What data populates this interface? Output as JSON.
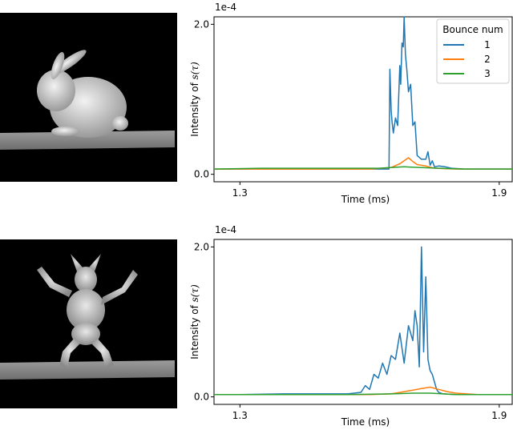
{
  "figure": {
    "colors": {
      "series1": "#1f77b4",
      "series2": "#ff7f0e",
      "series3": "#2ca02c",
      "render_bg": "#000000",
      "floor": "#8a8a8a",
      "model": "#d9d9d9"
    },
    "renders": [
      {
        "name": "bunny",
        "icon": "bunny-render"
      },
      {
        "name": "armadillo",
        "icon": "armadillo-render"
      }
    ]
  },
  "chart_data": [
    {
      "type": "line",
      "xlabel": "Time (ms)",
      "ylabel": "Intensity of s(τ)",
      "ylabel_plain": "Intensity of ",
      "ylabel_math": "s(τ)",
      "offset_label": "1e-4",
      "xlim": [
        1.24,
        1.93
      ],
      "ylim": [
        -0.1,
        2.1
      ],
      "x_ticks": [
        1.3,
        1.9
      ],
      "x_tick_labels": [
        "1.3",
        "1.9"
      ],
      "y_ticks": [
        0.0,
        2.0
      ],
      "y_tick_labels": [
        "0.0",
        "2.0"
      ],
      "grid": false,
      "legend": {
        "title": "Bounce num",
        "placement": "top-right",
        "entries": [
          "1",
          "2",
          "3"
        ]
      },
      "series": [
        {
          "name": "1",
          "color": "#1f77b4",
          "x": [
            1.24,
            1.3,
            1.4,
            1.5,
            1.55,
            1.6,
            1.63,
            1.645,
            1.647,
            1.65,
            1.652,
            1.655,
            1.66,
            1.665,
            1.67,
            1.672,
            1.675,
            1.678,
            1.68,
            1.683,
            1.686,
            1.69,
            1.695,
            1.7,
            1.705,
            1.71,
            1.72,
            1.73,
            1.735,
            1.74,
            1.745,
            1.75,
            1.76,
            1.775,
            1.79,
            1.82,
            1.85,
            1.9,
            1.93
          ],
          "y": [
            0.07,
            0.07,
            0.07,
            0.07,
            0.07,
            0.07,
            0.07,
            0.07,
            1.4,
            0.85,
            0.7,
            0.55,
            0.75,
            0.65,
            1.45,
            1.2,
            1.75,
            1.7,
            2.1,
            1.6,
            1.4,
            1.1,
            1.2,
            0.65,
            0.7,
            0.25,
            0.2,
            0.2,
            0.3,
            0.12,
            0.18,
            0.1,
            0.11,
            0.1,
            0.08,
            0.07,
            0.07,
            0.07,
            0.07
          ]
        },
        {
          "name": "2",
          "color": "#ff7f0e",
          "x": [
            1.24,
            1.6,
            1.65,
            1.67,
            1.69,
            1.7,
            1.71,
            1.73,
            1.75,
            1.8,
            1.93
          ],
          "y": [
            0.07,
            0.07,
            0.09,
            0.14,
            0.22,
            0.17,
            0.13,
            0.11,
            0.08,
            0.07,
            0.07
          ]
        },
        {
          "name": "3",
          "color": "#2ca02c",
          "x": [
            1.24,
            1.35,
            1.45,
            1.55,
            1.62,
            1.68,
            1.72,
            1.76,
            1.82,
            1.93
          ],
          "y": [
            0.07,
            0.08,
            0.08,
            0.08,
            0.08,
            0.1,
            0.09,
            0.08,
            0.07,
            0.07
          ]
        }
      ]
    },
    {
      "type": "line",
      "xlabel": "Time (ms)",
      "ylabel": "Intensity of s(τ)",
      "ylabel_plain": "Intensity of ",
      "ylabel_math": "s(τ)",
      "offset_label": "1e-4",
      "xlim": [
        1.24,
        1.93
      ],
      "ylim": [
        -0.1,
        2.1
      ],
      "x_ticks": [
        1.3,
        1.9
      ],
      "x_tick_labels": [
        "1.3",
        "1.9"
      ],
      "y_ticks": [
        0.0,
        2.0
      ],
      "y_tick_labels": [
        "0.0",
        "2.0"
      ],
      "grid": false,
      "series": [
        {
          "name": "1",
          "color": "#1f77b4",
          "x": [
            1.24,
            1.3,
            1.4,
            1.55,
            1.58,
            1.59,
            1.6,
            1.61,
            1.62,
            1.63,
            1.64,
            1.65,
            1.66,
            1.67,
            1.68,
            1.69,
            1.7,
            1.705,
            1.71,
            1.715,
            1.72,
            1.725,
            1.73,
            1.735,
            1.74,
            1.745,
            1.75,
            1.755,
            1.76,
            1.77,
            1.8,
            1.85,
            1.93
          ],
          "y": [
            0.03,
            0.03,
            0.04,
            0.04,
            0.06,
            0.15,
            0.1,
            0.3,
            0.25,
            0.45,
            0.3,
            0.55,
            0.5,
            0.85,
            0.45,
            0.95,
            0.75,
            1.15,
            0.95,
            0.4,
            2.0,
            0.6,
            1.6,
            0.5,
            0.35,
            0.3,
            0.2,
            0.1,
            0.06,
            0.04,
            0.03,
            0.03,
            0.03
          ]
        },
        {
          "name": "2",
          "color": "#ff7f0e",
          "x": [
            1.24,
            1.6,
            1.65,
            1.68,
            1.7,
            1.72,
            1.74,
            1.76,
            1.78,
            1.8,
            1.85,
            1.93
          ],
          "y": [
            0.03,
            0.03,
            0.04,
            0.07,
            0.09,
            0.11,
            0.13,
            0.1,
            0.07,
            0.05,
            0.03,
            0.03
          ]
        },
        {
          "name": "3",
          "color": "#2ca02c",
          "x": [
            1.24,
            1.4,
            1.55,
            1.65,
            1.7,
            1.74,
            1.77,
            1.8,
            1.93
          ],
          "y": [
            0.03,
            0.03,
            0.03,
            0.04,
            0.05,
            0.05,
            0.04,
            0.03,
            0.03
          ]
        }
      ]
    }
  ]
}
